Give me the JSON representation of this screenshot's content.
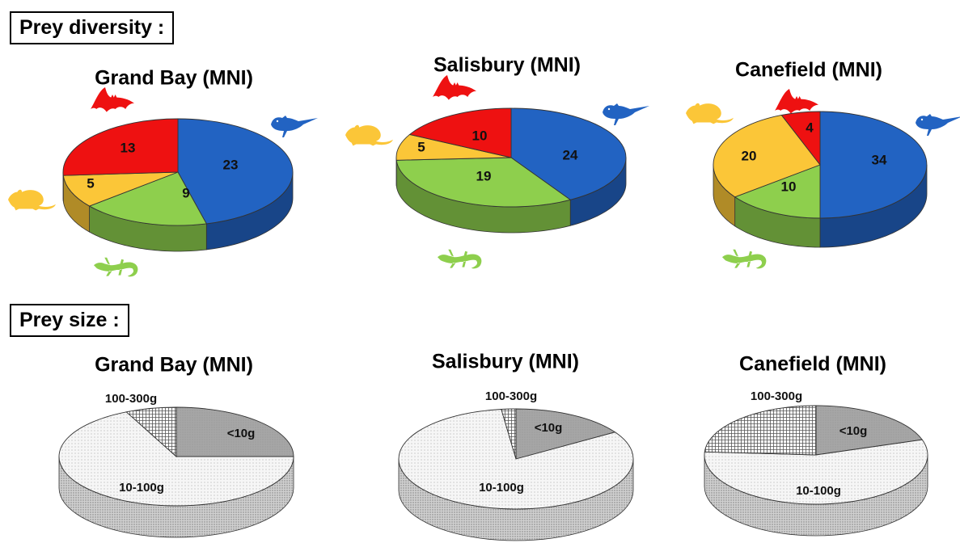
{
  "sections": {
    "diversity_label": "Prey diversity :",
    "size_label": "Prey size :"
  },
  "colors": {
    "bird": "#2263c2",
    "bat": "#ee1111",
    "rodent": "#fbc638",
    "lizard": "#8ecf4d",
    "size_small": "#a6a6a6",
    "size_large": "#ffffff",
    "size_medium": "#f4f4f4"
  },
  "icons": {
    "bird": "bird-icon",
    "bat": "bat-icon",
    "rodent": "rodent-icon",
    "lizard": "lizard-icon"
  },
  "chart_data": [
    {
      "type": "pie",
      "title": "Grand Bay (MNI)",
      "group": "Prey diversity",
      "categories": [
        "bird",
        "lizard",
        "rodent",
        "bat"
      ],
      "values": [
        23,
        9,
        5,
        13
      ],
      "labels": [
        "23",
        "9",
        "5",
        "13"
      ]
    },
    {
      "type": "pie",
      "title": "Salisbury (MNI)",
      "group": "Prey diversity",
      "categories": [
        "bird",
        "lizard",
        "rodent",
        "bat"
      ],
      "values": [
        24,
        19,
        5,
        10
      ],
      "labels": [
        "24",
        "19",
        "5",
        "10"
      ]
    },
    {
      "type": "pie",
      "title": "Canefield (MNI)",
      "group": "Prey diversity",
      "categories": [
        "bird",
        "lizard",
        "rodent",
        "bat"
      ],
      "values": [
        34,
        10,
        20,
        4
      ],
      "labels": [
        "34",
        "10",
        "20",
        "4"
      ]
    },
    {
      "type": "pie",
      "title": "Grand Bay (MNI)",
      "group": "Prey size",
      "categories": [
        "<10g",
        "10-100g",
        "100-300g"
      ],
      "values": [
        25,
        68,
        7
      ],
      "labels": [
        "<10g",
        "10-100g",
        "100-300g"
      ]
    },
    {
      "type": "pie",
      "title": "Salisbury (MNI)",
      "group": "Prey size",
      "categories": [
        "<10g",
        "10-100g",
        "100-300g"
      ],
      "values": [
        16,
        82,
        2
      ],
      "labels": [
        "<10g",
        "10-100g",
        "100-300g"
      ]
    },
    {
      "type": "pie",
      "title": "Canefield (MNI)",
      "group": "Prey size",
      "categories": [
        "<10g",
        "10-100g",
        "100-300g"
      ],
      "values": [
        20,
        56,
        24
      ],
      "labels": [
        "<10g",
        "10-100g",
        "100-300g"
      ]
    }
  ]
}
